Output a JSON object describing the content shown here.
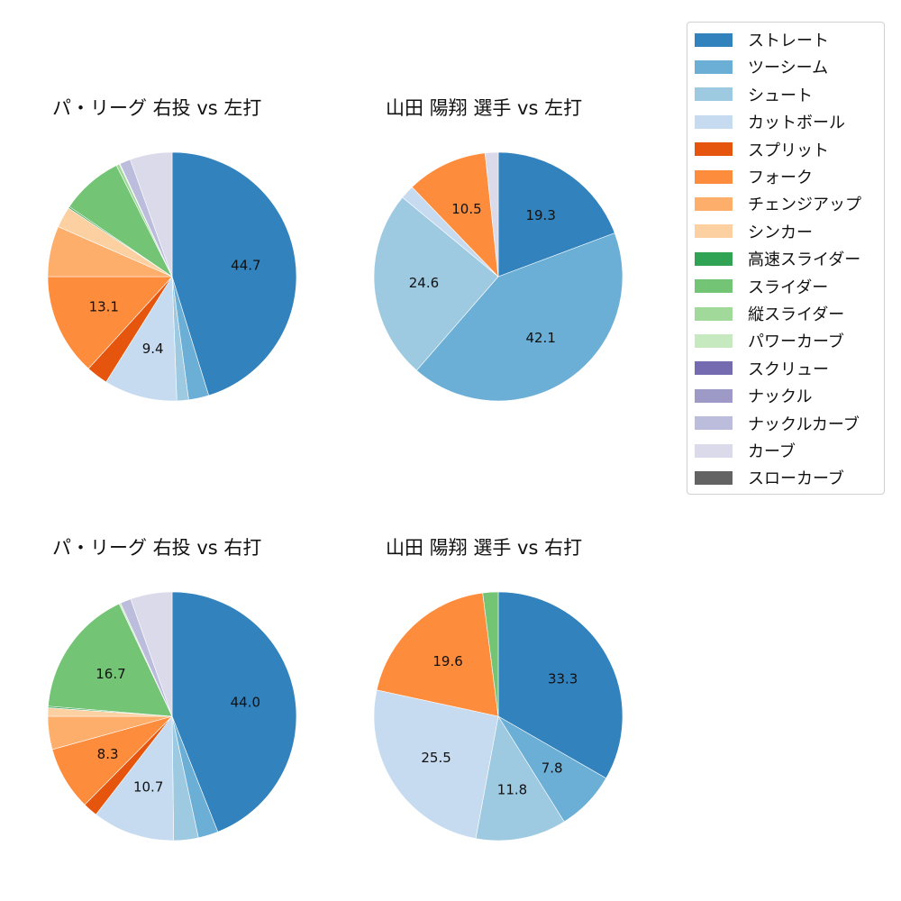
{
  "legend": {
    "items": [
      {
        "label": "ストレート",
        "color": "#3182bd"
      },
      {
        "label": "ツーシーム",
        "color": "#6baed6"
      },
      {
        "label": "シュート",
        "color": "#9ecae1"
      },
      {
        "label": "カットボール",
        "color": "#c6dbef"
      },
      {
        "label": "スプリット",
        "color": "#e6550d"
      },
      {
        "label": "フォーク",
        "color": "#fd8d3c"
      },
      {
        "label": "チェンジアップ",
        "color": "#fdae6b"
      },
      {
        "label": "シンカー",
        "color": "#fdd0a2"
      },
      {
        "label": "高速スライダー",
        "color": "#31a354"
      },
      {
        "label": "スライダー",
        "color": "#74c476"
      },
      {
        "label": "縦スライダー",
        "color": "#a1d99b"
      },
      {
        "label": "パワーカーブ",
        "color": "#c7e9c0"
      },
      {
        "label": "スクリュー",
        "color": "#756bb1"
      },
      {
        "label": "ナックル",
        "color": "#9e9ac8"
      },
      {
        "label": "ナックルカーブ",
        "color": "#bcbddc"
      },
      {
        "label": "カーブ",
        "color": "#dadaeb"
      },
      {
        "label": "スローカーブ",
        "color": "#636363"
      }
    ]
  },
  "chart_data": [
    {
      "type": "pie",
      "title": "パ・リーグ 右投 vs 左打",
      "categories": [
        "ストレート",
        "ツーシーム",
        "シュート",
        "カットボール",
        "スプリット",
        "フォーク",
        "チェンジアップ",
        "シンカー",
        "高速スライダー",
        "スライダー",
        "縦スライダー",
        "パワーカーブ",
        "ナックルカーブ",
        "カーブ"
      ],
      "values": [
        44.7,
        2.6,
        1.5,
        9.4,
        2.8,
        13.1,
        6.5,
        2.7,
        0.2,
        8.0,
        0.4,
        0.1,
        1.4,
        5.4
      ],
      "labels_shown": [
        "44.7",
        "9.4",
        "13.1"
      ]
    },
    {
      "type": "pie",
      "title": "山田 陽翔 選手 vs 左打",
      "categories": [
        "ストレート",
        "ツーシーム",
        "シュート",
        "カットボール",
        "フォーク",
        "カーブ"
      ],
      "values": [
        19.3,
        42.1,
        24.6,
        1.8,
        10.5,
        1.7
      ],
      "labels_shown": [
        "19.3",
        "42.1",
        "24.6",
        "10.5"
      ]
    },
    {
      "type": "pie",
      "title": "パ・リーグ 右投 vs 右打",
      "categories": [
        "ストレート",
        "ツーシーム",
        "シュート",
        "カットボール",
        "スプリット",
        "フォーク",
        "チェンジアップ",
        "シンカー",
        "高速スライダー",
        "スライダー",
        "パワーカーブ",
        "ナックルカーブ",
        "カーブ"
      ],
      "values": [
        44.0,
        2.6,
        3.2,
        10.7,
        1.9,
        8.3,
        4.3,
        1.1,
        0.2,
        16.7,
        0.2,
        1.4,
        5.4
      ],
      "labels_shown": [
        "44.0",
        "10.7",
        "8.3",
        "16.7"
      ]
    },
    {
      "type": "pie",
      "title": "山田 陽翔 選手 vs 右打",
      "categories": [
        "ストレート",
        "ツーシーム",
        "シュート",
        "カットボール",
        "フォーク",
        "スライダー"
      ],
      "values": [
        33.3,
        7.8,
        11.8,
        25.5,
        19.6,
        2.0
      ],
      "labels_shown": [
        "33.3",
        "7.8",
        "11.8",
        "25.5",
        "19.6"
      ]
    }
  ],
  "charts": [
    {
      "title": "パ・リーグ 右投 vs 左打"
    },
    {
      "title": "山田 陽翔 選手 vs 左打"
    },
    {
      "title": "パ・リーグ 右投 vs 右打"
    },
    {
      "title": "山田 陽翔 選手 vs 右打"
    }
  ]
}
